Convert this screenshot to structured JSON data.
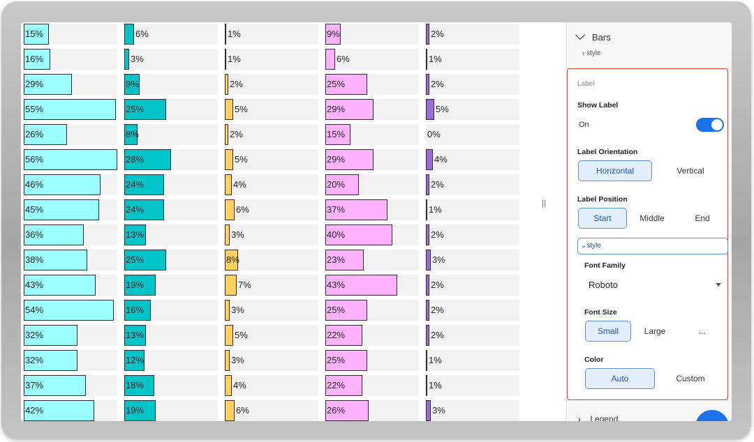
{
  "chart_data": {
    "type": "bar",
    "orientation": "horizontal",
    "series_colors": [
      "#9bffff",
      "#00c4c8",
      "#ffd15c",
      "#ffb3ff",
      "#9c6ad9"
    ],
    "rows": [
      [
        "15%",
        "6%",
        "1%",
        "9%",
        "2%"
      ],
      [
        "16%",
        "3%",
        "1%",
        "6%",
        "1%"
      ],
      [
        "29%",
        "9%",
        "2%",
        "25%",
        "2%"
      ],
      [
        "55%",
        "25%",
        "5%",
        "29%",
        "5%"
      ],
      [
        "26%",
        "8%",
        "2%",
        "15%",
        "0%"
      ],
      [
        "56%",
        "28%",
        "5%",
        "29%",
        "4%"
      ],
      [
        "46%",
        "24%",
        "4%",
        "20%",
        "2%"
      ],
      [
        "45%",
        "24%",
        "6%",
        "37%",
        "1%"
      ],
      [
        "36%",
        "13%",
        "3%",
        "40%",
        "2%"
      ],
      [
        "38%",
        "25%",
        "8%",
        "23%",
        "3%"
      ],
      [
        "43%",
        "19%",
        "7%",
        "43%",
        "2%"
      ],
      [
        "54%",
        "16%",
        "3%",
        "25%",
        "2%"
      ],
      [
        "32%",
        "13%",
        "5%",
        "22%",
        "2%"
      ],
      [
        "32%",
        "12%",
        "3%",
        "25%",
        "1%"
      ],
      [
        "37%",
        "18%",
        "4%",
        "22%",
        "1%"
      ],
      [
        "42%",
        "19%",
        "6%",
        "26%",
        "3%"
      ]
    ],
    "values": [
      [
        15,
        6,
        1,
        9,
        2
      ],
      [
        16,
        3,
        1,
        6,
        1
      ],
      [
        29,
        9,
        2,
        25,
        2
      ],
      [
        55,
        25,
        5,
        29,
        5
      ],
      [
        26,
        8,
        2,
        15,
        0
      ],
      [
        56,
        28,
        5,
        29,
        4
      ],
      [
        46,
        24,
        4,
        20,
        2
      ],
      [
        45,
        24,
        6,
        37,
        1
      ],
      [
        36,
        13,
        3,
        40,
        2
      ],
      [
        38,
        25,
        8,
        23,
        3
      ],
      [
        43,
        19,
        7,
        43,
        2
      ],
      [
        54,
        16,
        3,
        25,
        2
      ],
      [
        32,
        13,
        5,
        22,
        2
      ],
      [
        32,
        12,
        3,
        25,
        1
      ],
      [
        37,
        18,
        4,
        22,
        1
      ],
      [
        42,
        19,
        6,
        26,
        3
      ]
    ],
    "xlim": [
      0,
      56
    ]
  },
  "panel": {
    "bars_header": "Bars",
    "style_link": "style",
    "label_section": "Label",
    "show_label": {
      "title": "Show Label",
      "value": "On",
      "enabled": true
    },
    "orientation": {
      "title": "Label Orientation",
      "options": [
        "Horizontal",
        "Vertical"
      ],
      "selected": "Horizontal"
    },
    "position": {
      "title": "Label Position",
      "options": [
        "Start",
        "Middle",
        "End"
      ],
      "selected": "Start"
    },
    "style_toggle": "style",
    "font_family": {
      "title": "Font Family",
      "value": "Roboto"
    },
    "font_size": {
      "title": "Font Size",
      "options": [
        "Small",
        "Large",
        "..."
      ],
      "selected": "Small"
    },
    "color": {
      "title": "Color",
      "options": [
        "Auto",
        "Custom"
      ],
      "selected": "Auto"
    },
    "legend_header": "Legend"
  },
  "colors": {
    "accent": "#1a73e8",
    "highlight_border": "#e53935"
  }
}
